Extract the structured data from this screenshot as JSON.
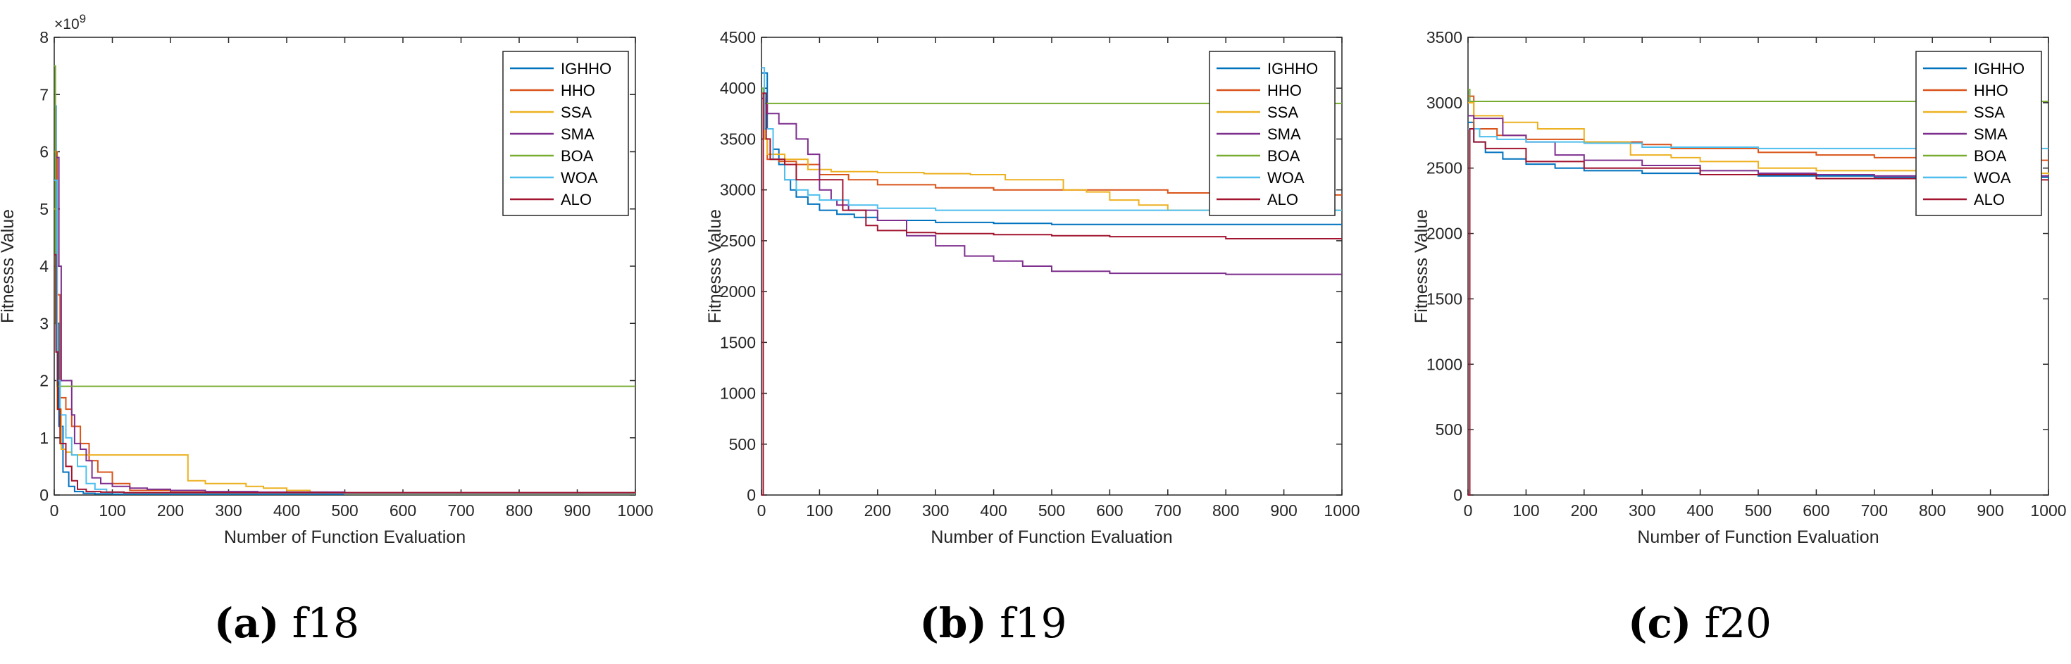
{
  "legend_names": [
    "IGHHO",
    "HHO",
    "SSA",
    "SMA",
    "BOA",
    "WOA",
    "ALO"
  ],
  "colors": {
    "IGHHO": "#0072bd",
    "HHO": "#d95319",
    "SSA": "#edb120",
    "SMA": "#7e2f8e",
    "BOA": "#77ac30",
    "WOA": "#4dbeee",
    "ALO": "#a2142f"
  },
  "chart_data": [
    {
      "type": "line",
      "panel": "a",
      "caption_letter": "(a)",
      "caption_text": "f18",
      "xlabel": "Number of Function Evaluation",
      "ylabel": "Fitnesss Value",
      "xlim": [
        0,
        1000
      ],
      "ylim": [
        0,
        8
      ],
      "xticks": [
        "0",
        "100",
        "200",
        "300",
        "400",
        "500",
        "600",
        "700",
        "800",
        "900",
        "1000"
      ],
      "yticks": [
        "0",
        "1",
        "2",
        "3",
        "4",
        "5",
        "6",
        "7",
        "8"
      ],
      "exponent_label": "×10",
      "exponent_power": "9",
      "legend_position": "top-right",
      "series": [
        {
          "name": "IGHHO",
          "x": [
            0,
            3,
            8,
            15,
            25,
            35,
            50,
            70,
            100,
            1000
          ],
          "y": [
            6.8,
            3.0,
            1.2,
            0.4,
            0.15,
            0.06,
            0.03,
            0.02,
            0.015,
            0.01
          ]
        },
        {
          "name": "HHO",
          "x": [
            0,
            5,
            10,
            20,
            30,
            45,
            60,
            75,
            100,
            130,
            200,
            300,
            1000
          ],
          "y": [
            6.0,
            3.5,
            1.7,
            1.5,
            1.2,
            0.9,
            0.6,
            0.4,
            0.2,
            0.08,
            0.05,
            0.04,
            0.03
          ]
        },
        {
          "name": "SSA",
          "x": [
            0,
            5,
            12,
            20,
            30,
            120,
            220,
            230,
            260,
            330,
            360,
            400,
            440,
            470,
            500,
            1000
          ],
          "y": [
            5.0,
            1.5,
            0.8,
            0.75,
            0.7,
            0.7,
            0.7,
            0.25,
            0.2,
            0.15,
            0.12,
            0.08,
            0.05,
            0.04,
            0.02,
            0.02
          ]
        },
        {
          "name": "SMA",
          "x": [
            0,
            3,
            8,
            12,
            20,
            30,
            35,
            45,
            55,
            65,
            80,
            100,
            130,
            160,
            200,
            260,
            350,
            500,
            1000
          ],
          "y": [
            5.9,
            5.9,
            4.0,
            2.0,
            2.0,
            1.4,
            0.9,
            0.8,
            0.6,
            0.3,
            0.2,
            0.15,
            0.12,
            0.1,
            0.08,
            0.06,
            0.05,
            0.04,
            0.04
          ]
        },
        {
          "name": "BOA",
          "x": [
            0,
            2,
            5,
            1000
          ],
          "y": [
            7.5,
            3.0,
            1.9,
            1.9
          ]
        },
        {
          "name": "WOA",
          "x": [
            0,
            5,
            10,
            20,
            30,
            40,
            55,
            70,
            90,
            120,
            1000
          ],
          "y": [
            5.5,
            2.0,
            1.4,
            1.0,
            0.7,
            0.5,
            0.2,
            0.1,
            0.05,
            0.03,
            0.03
          ]
        },
        {
          "name": "ALO",
          "x": [
            0,
            3,
            6,
            10,
            20,
            30,
            40,
            55,
            80,
            120,
            1000
          ],
          "y": [
            4.2,
            2.5,
            1.5,
            0.9,
            0.5,
            0.25,
            0.1,
            0.06,
            0.05,
            0.04,
            0.04
          ]
        }
      ]
    },
    {
      "type": "line",
      "panel": "b",
      "caption_letter": "(b)",
      "caption_text": "f19",
      "xlabel": "Number of Function Evaluation",
      "ylabel": "Fitnesss Value",
      "xlim": [
        0,
        1000
      ],
      "ylim": [
        0,
        4500
      ],
      "xticks": [
        "0",
        "100",
        "200",
        "300",
        "400",
        "500",
        "600",
        "700",
        "800",
        "900",
        "1000"
      ],
      "yticks": [
        "0",
        "500",
        "1000",
        "1500",
        "2000",
        "2500",
        "3000",
        "3500",
        "4000",
        "4500"
      ],
      "legend_position": "top-right",
      "series": [
        {
          "name": "IGHHO",
          "x": [
            0,
            10,
            20,
            30,
            40,
            50,
            60,
            80,
            100,
            130,
            160,
            200,
            300,
            400,
            500,
            1000
          ],
          "y": [
            4150,
            3600,
            3400,
            3250,
            3100,
            3000,
            2930,
            2860,
            2800,
            2760,
            2730,
            2700,
            2680,
            2670,
            2660,
            2660
          ]
        },
        {
          "name": "HHO",
          "x": [
            0,
            5,
            10,
            30,
            60,
            100,
            150,
            200,
            300,
            400,
            500,
            700,
            850,
            1000
          ],
          "y": [
            3950,
            3500,
            3300,
            3280,
            3250,
            3150,
            3100,
            3050,
            3020,
            3000,
            3000,
            2970,
            2950,
            2950
          ]
        },
        {
          "name": "SSA",
          "x": [
            0,
            5,
            10,
            40,
            80,
            120,
            200,
            280,
            360,
            420,
            520,
            560,
            600,
            650,
            700,
            1000
          ],
          "y": [
            3900,
            3500,
            3350,
            3300,
            3200,
            3180,
            3170,
            3160,
            3150,
            3100,
            3000,
            2980,
            2900,
            2850,
            2800,
            2800
          ]
        },
        {
          "name": "SMA",
          "x": [
            0,
            5,
            10,
            30,
            60,
            80,
            100,
            120,
            130,
            150,
            200,
            250,
            300,
            350,
            400,
            450,
            500,
            600,
            800,
            1000
          ],
          "y": [
            3900,
            3850,
            3750,
            3650,
            3500,
            3350,
            3000,
            2900,
            2850,
            2800,
            2700,
            2550,
            2450,
            2350,
            2300,
            2250,
            2200,
            2180,
            2170,
            2170
          ]
        },
        {
          "name": "BOA",
          "x": [
            0,
            3,
            1000
          ],
          "y": [
            4000,
            3850,
            3850
          ]
        },
        {
          "name": "WOA",
          "x": [
            0,
            5,
            20,
            40,
            60,
            80,
            100,
            150,
            200,
            300,
            1000
          ],
          "y": [
            4200,
            3600,
            3300,
            3100,
            3000,
            2950,
            2900,
            2850,
            2820,
            2800,
            2800
          ]
        },
        {
          "name": "ALO",
          "x": [
            0,
            3,
            8,
            15,
            40,
            60,
            100,
            140,
            180,
            200,
            250,
            300,
            400,
            500,
            600,
            800,
            1000
          ],
          "y": [
            0,
            3950,
            3500,
            3300,
            3250,
            3100,
            3100,
            2800,
            2650,
            2600,
            2580,
            2570,
            2560,
            2550,
            2540,
            2520,
            2520
          ]
        }
      ]
    },
    {
      "type": "line",
      "panel": "c",
      "caption_letter": "(c)",
      "caption_text": "f20",
      "xlabel": "Number of Function Evaluation",
      "ylabel": "Fitnesss Value",
      "xlim": [
        0,
        1000
      ],
      "ylim": [
        0,
        3500
      ],
      "xticks": [
        "0",
        "100",
        "200",
        "300",
        "400",
        "500",
        "600",
        "700",
        "800",
        "900",
        "1000"
      ],
      "yticks": [
        "0",
        "500",
        "1000",
        "1500",
        "2000",
        "2500",
        "3000",
        "3500"
      ],
      "legend_position": "top-right",
      "series": [
        {
          "name": "IGHHO",
          "x": [
            0,
            10,
            30,
            60,
            100,
            150,
            200,
            300,
            400,
            500,
            700,
            1000
          ],
          "y": [
            2850,
            2700,
            2620,
            2570,
            2530,
            2500,
            2480,
            2460,
            2450,
            2440,
            2430,
            2420
          ]
        },
        {
          "name": "HHO",
          "x": [
            0,
            10,
            50,
            100,
            200,
            300,
            350,
            500,
            600,
            700,
            900,
            1000
          ],
          "y": [
            3050,
            2800,
            2750,
            2720,
            2700,
            2680,
            2650,
            2620,
            2600,
            2580,
            2560,
            2560
          ]
        },
        {
          "name": "SSA",
          "x": [
            0,
            10,
            60,
            120,
            200,
            270,
            280,
            350,
            400,
            500,
            600,
            800,
            1000
          ],
          "y": [
            3000,
            2900,
            2850,
            2800,
            2700,
            2700,
            2600,
            2580,
            2550,
            2500,
            2480,
            2460,
            2450
          ]
        },
        {
          "name": "SMA",
          "x": [
            0,
            10,
            60,
            100,
            150,
            200,
            300,
            400,
            500,
            600,
            700,
            1000
          ],
          "y": [
            2900,
            2880,
            2750,
            2700,
            2600,
            2560,
            2520,
            2480,
            2460,
            2450,
            2440,
            2440
          ]
        },
        {
          "name": "BOA",
          "x": [
            0,
            3,
            1000
          ],
          "y": [
            3100,
            3010,
            3010
          ]
        },
        {
          "name": "WOA",
          "x": [
            0,
            20,
            50,
            100,
            200,
            300,
            500,
            1000
          ],
          "y": [
            2800,
            2740,
            2720,
            2700,
            2690,
            2660,
            2650,
            2650
          ]
        },
        {
          "name": "ALO",
          "x": [
            0,
            3,
            10,
            30,
            100,
            200,
            400,
            600,
            800,
            1000
          ],
          "y": [
            0,
            2800,
            2700,
            2650,
            2550,
            2500,
            2450,
            2420,
            2410,
            2410
          ]
        }
      ]
    }
  ]
}
